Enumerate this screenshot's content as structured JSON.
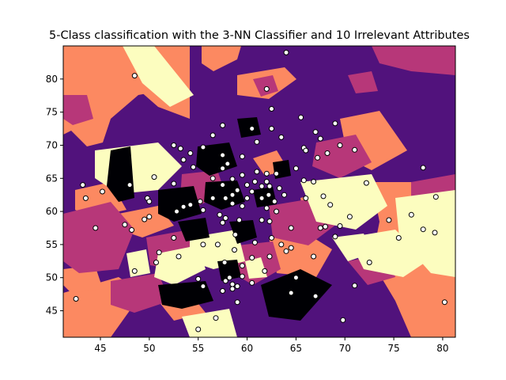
{
  "chart_data": {
    "type": "scatter",
    "title": "5-Class classification with the 3-NN Classifier and 10 Irrelevant Attributes",
    "xlabel": "",
    "ylabel": "",
    "xlim": [
      41.2,
      81.3
    ],
    "ylim": [
      41.0,
      85.0
    ],
    "xticks": [
      45,
      50,
      55,
      60,
      65,
      70,
      75,
      80
    ],
    "yticks": [
      45,
      50,
      55,
      60,
      65,
      70,
      75,
      80
    ],
    "grid": false,
    "legend": "none",
    "background": "decision regions (magma colormap)",
    "class_colors": [
      "#000004",
      "#51127c",
      "#b73779",
      "#fc8961",
      "#fcfdbf"
    ],
    "marker": {
      "shape": "circle",
      "fill": "#ffffff",
      "edge": "#000000"
    },
    "points": [
      [
        64,
        84
      ],
      [
        62,
        78.5
      ],
      [
        48.5,
        80.5
      ],
      [
        62.5,
        75.5
      ],
      [
        65.5,
        74.2
      ],
      [
        69,
        73.3
      ],
      [
        57.5,
        73
      ],
      [
        60.5,
        72.5
      ],
      [
        62.5,
        72.5
      ],
      [
        67,
        72
      ],
      [
        63.5,
        71.2
      ],
      [
        67.5,
        71
      ],
      [
        56.5,
        71.5
      ],
      [
        61,
        70.5
      ],
      [
        69.5,
        70
      ],
      [
        52.5,
        70
      ],
      [
        53.2,
        69.5
      ],
      [
        55.5,
        69.7
      ],
      [
        65.8,
        69.6
      ],
      [
        66,
        69.2
      ],
      [
        71,
        69.3
      ],
      [
        54.2,
        68.8
      ],
      [
        57.5,
        68.5
      ],
      [
        59.5,
        68.3
      ],
      [
        68.2,
        68.8
      ],
      [
        67.2,
        68.1
      ],
      [
        53.5,
        67.8
      ],
      [
        58,
        67.2
      ],
      [
        54.5,
        66.7
      ],
      [
        65,
        66.5
      ],
      [
        57.5,
        66.5
      ],
      [
        78,
        66.6
      ],
      [
        61,
        66
      ],
      [
        62,
        65.7
      ],
      [
        63,
        65.7
      ],
      [
        59.5,
        65.5
      ],
      [
        50.5,
        65.2
      ],
      [
        56.5,
        65
      ],
      [
        58.5,
        64.9
      ],
      [
        60.8,
        64.5
      ],
      [
        62,
        64.5
      ],
      [
        65.8,
        64.7
      ],
      [
        66.8,
        64.5
      ],
      [
        72.2,
        64.3
      ],
      [
        43.2,
        64
      ],
      [
        48,
        64
      ],
      [
        52.5,
        64.2
      ],
      [
        57.5,
        64
      ],
      [
        60,
        64
      ],
      [
        61.5,
        63.8
      ],
      [
        62.3,
        63.8
      ],
      [
        63.3,
        63.5
      ],
      [
        59,
        63.2
      ],
      [
        60.5,
        63
      ],
      [
        45.2,
        63
      ],
      [
        58.5,
        62.5
      ],
      [
        62.2,
        62.5
      ],
      [
        63.8,
        62.5
      ],
      [
        67.8,
        62.3
      ],
      [
        79.3,
        62.2
      ],
      [
        43.5,
        62
      ],
      [
        49.8,
        62
      ],
      [
        56.5,
        62
      ],
      [
        57.8,
        62
      ],
      [
        60,
        62
      ],
      [
        61.5,
        62
      ],
      [
        66,
        62
      ],
      [
        55.2,
        61.5
      ],
      [
        62.8,
        61.5
      ],
      [
        50,
        61.5
      ],
      [
        58.5,
        61.2
      ],
      [
        54.2,
        61
      ],
      [
        59.5,
        60.8
      ],
      [
        62,
        60.5
      ],
      [
        53.5,
        60.7
      ],
      [
        68.5,
        61
      ],
      [
        63,
        60
      ],
      [
        55.5,
        60.2
      ],
      [
        52.8,
        60
      ],
      [
        70.5,
        59.2
      ],
      [
        57.2,
        59.5
      ],
      [
        50,
        59.2
      ],
      [
        76.8,
        59.5
      ],
      [
        57.8,
        59
      ],
      [
        49.5,
        58.8
      ],
      [
        74.5,
        58.7
      ],
      [
        59.2,
        58.7
      ],
      [
        61.5,
        58.7
      ],
      [
        62.3,
        58.5
      ],
      [
        57.5,
        58.3
      ],
      [
        47.5,
        58
      ],
      [
        69.5,
        57.8
      ],
      [
        48.2,
        57.2
      ],
      [
        44.5,
        57.5
      ],
      [
        64.5,
        57.5
      ],
      [
        67.5,
        57.5
      ],
      [
        68,
        57.7
      ],
      [
        78,
        57.3
      ],
      [
        79.2,
        56.8
      ],
      [
        58.8,
        56.5
      ],
      [
        69,
        56.2
      ],
      [
        75.5,
        56
      ],
      [
        52.5,
        56
      ],
      [
        62.5,
        56
      ],
      [
        55.5,
        55
      ],
      [
        60.8,
        55.3
      ],
      [
        57,
        55
      ],
      [
        63.5,
        55
      ],
      [
        64.5,
        54.5
      ],
      [
        58.7,
        54.2
      ],
      [
        64,
        54
      ],
      [
        51,
        53.8
      ],
      [
        53,
        53.2
      ],
      [
        62.3,
        53.2
      ],
      [
        66.8,
        53.2
      ],
      [
        60.5,
        53
      ],
      [
        50.7,
        52.3
      ],
      [
        72.5,
        52.3
      ],
      [
        57.7,
        52.3
      ],
      [
        59.5,
        51.8
      ],
      [
        48.5,
        51
      ],
      [
        61.8,
        51
      ],
      [
        59.5,
        50.2
      ],
      [
        65,
        50
      ],
      [
        55,
        49.8
      ],
      [
        58.2,
        50
      ],
      [
        57.8,
        49.5
      ],
      [
        60.5,
        49.2
      ],
      [
        55.5,
        48.7
      ],
      [
        58.5,
        49
      ],
      [
        59,
        48.7
      ],
      [
        71,
        48.8
      ],
      [
        58.5,
        48.3
      ],
      [
        57.5,
        48
      ],
      [
        64.5,
        47.7
      ],
      [
        67,
        47.2
      ],
      [
        56.8,
        43.9
      ],
      [
        59,
        46.3
      ],
      [
        42.5,
        46.8
      ],
      [
        80.2,
        46.3
      ],
      [
        55,
        42.2
      ],
      [
        69.8,
        43.6
      ]
    ]
  }
}
